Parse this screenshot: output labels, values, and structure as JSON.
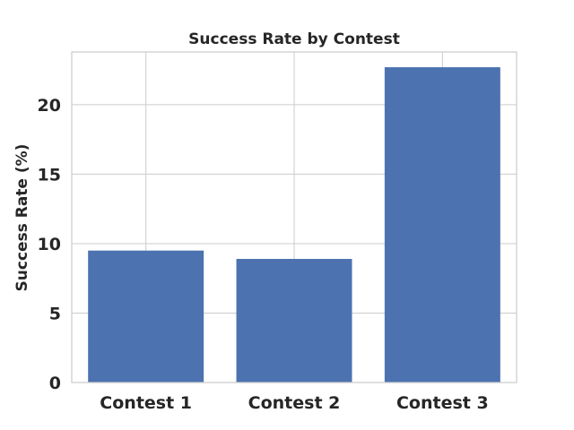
{
  "chart_data": {
    "type": "bar",
    "title": "Success Rate by Contest",
    "xlabel": "",
    "ylabel": "Success Rate (%)",
    "categories": [
      "Contest 1",
      "Contest 2",
      "Contest 3"
    ],
    "values": [
      9.5,
      8.9,
      22.7
    ],
    "ylim": [
      0,
      23.8
    ],
    "yticks": [
      0,
      5,
      10,
      15,
      20
    ],
    "grid": true,
    "bar_color": "#4c72b0",
    "legend": "none"
  }
}
